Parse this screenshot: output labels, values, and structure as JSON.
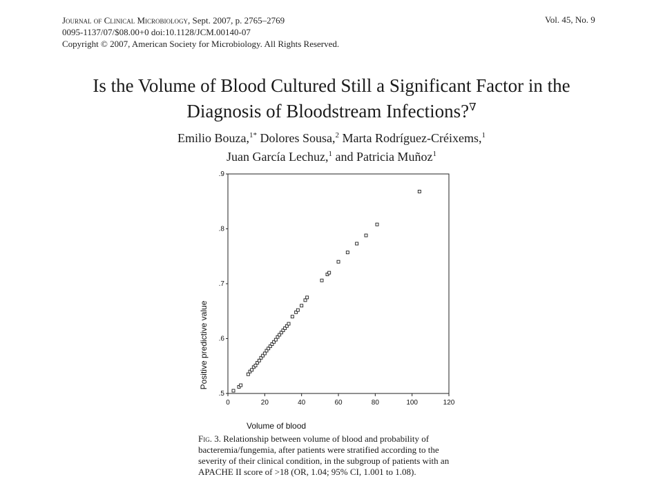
{
  "header": {
    "line1_journal": "Journal of Clinical Microbiology",
    "line1_rest": ", Sept. 2007, p. 2765–2769",
    "line2": "0095-1137/07/$08.00+0   doi:10.1128/JCM.00140-07",
    "line3": "Copyright © 2007, American Society for Microbiology. All Rights Reserved.",
    "volume": "Vol. 45, No. 9"
  },
  "title": {
    "line1": "Is the Volume of Blood Cultured Still a Significant Factor in the",
    "line2": "Diagnosis of Bloodstream Infections?",
    "mark": "∇"
  },
  "authors": {
    "a1": "Emilio Bouza,",
    "a1_sup": "1*",
    "a2": " Dolores Sousa,",
    "a2_sup": "2",
    "a3": " Marta Rodríguez-Créixems,",
    "a3_sup": "1",
    "a4": "Juan García Lechuz,",
    "a4_sup": "1",
    "a5": " and Patricia Muñoz",
    "a5_sup": "1"
  },
  "chart_data": {
    "type": "scatter",
    "xlabel": "Volume of blood",
    "ylabel": "Positive predictive value",
    "xlim": [
      0,
      120
    ],
    "ylim": [
      0.5,
      0.9
    ],
    "x_ticks": [
      "0",
      "20",
      "40",
      "60",
      "80",
      "100",
      "120"
    ],
    "y_ticks": [
      ".5",
      ".6",
      ".7",
      ".8",
      ".9"
    ],
    "grid": false,
    "marker": "open-square",
    "points": [
      [
        3,
        0.505
      ],
      [
        6,
        0.512
      ],
      [
        7,
        0.515
      ],
      [
        11,
        0.535
      ],
      [
        12,
        0.54
      ],
      [
        13,
        0.543
      ],
      [
        14,
        0.548
      ],
      [
        15,
        0.551
      ],
      [
        16,
        0.556
      ],
      [
        17,
        0.56
      ],
      [
        18,
        0.565
      ],
      [
        19,
        0.569
      ],
      [
        20,
        0.573
      ],
      [
        21,
        0.578
      ],
      [
        22,
        0.582
      ],
      [
        23,
        0.586
      ],
      [
        24,
        0.59
      ],
      [
        25,
        0.594
      ],
      [
        26,
        0.598
      ],
      [
        27,
        0.603
      ],
      [
        28,
        0.607
      ],
      [
        29,
        0.611
      ],
      [
        30,
        0.615
      ],
      [
        31,
        0.619
      ],
      [
        32,
        0.623
      ],
      [
        33,
        0.627
      ],
      [
        35,
        0.64
      ],
      [
        37,
        0.648
      ],
      [
        38,
        0.652
      ],
      [
        40,
        0.66
      ],
      [
        42,
        0.67
      ],
      [
        43,
        0.675
      ],
      [
        51,
        0.706
      ],
      [
        54,
        0.717
      ],
      [
        55,
        0.72
      ],
      [
        60,
        0.74
      ],
      [
        65,
        0.757
      ],
      [
        70,
        0.773
      ],
      [
        75,
        0.788
      ],
      [
        81,
        0.808
      ],
      [
        104,
        0.868
      ]
    ]
  },
  "caption": {
    "lead": "Fig. 3.",
    "text": " Relationship between volume of blood and probability of bacteremia/fungemia, after patients were stratified according to the severity of their clinical condition, in the subgroup of patients with an APACHE II score of >18 (OR, 1.04; 95% CI, 1.001 to 1.08)."
  }
}
